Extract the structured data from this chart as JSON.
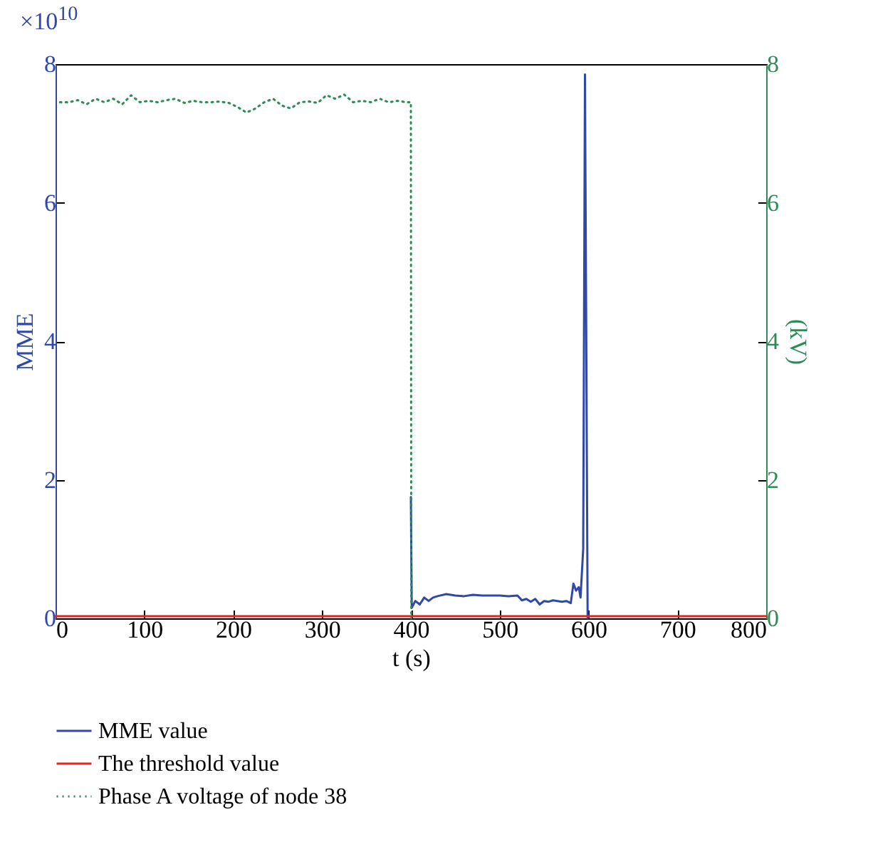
{
  "chart_data": {
    "type": "line",
    "xlabel": "t (s)",
    "ylabel": "MME",
    "y2label": "(kV)",
    "annotations": [
      "×10$^{10}$"
    ],
    "xlim": [
      0,
      800
    ],
    "xticks": [
      0,
      100,
      200,
      300,
      400,
      500,
      600,
      700,
      800
    ],
    "ylim": [
      0,
      8
    ],
    "yticks": [
      0,
      2,
      4,
      6,
      8
    ],
    "y2lim": [
      0,
      8
    ],
    "y2ticks": [
      0,
      2,
      4,
      6,
      8
    ],
    "legend": "bottom",
    "grid": false,
    "series": [
      {
        "name": "MME value",
        "color": "#3048a8",
        "line_style": "solid",
        "x": [
          400,
          401,
          405,
          410,
          415,
          420,
          425,
          430,
          440,
          450,
          460,
          470,
          480,
          490,
          500,
          510,
          520,
          525,
          530,
          535,
          540,
          545,
          550,
          555,
          560,
          570,
          575,
          580,
          583,
          586,
          589,
          591,
          594,
          596,
          599
        ],
        "values": [
          1.75,
          0.15,
          0.25,
          0.2,
          0.3,
          0.25,
          0.3,
          0.32,
          0.35,
          0.33,
          0.32,
          0.34,
          0.33,
          0.33,
          0.33,
          0.32,
          0.33,
          0.26,
          0.28,
          0.24,
          0.28,
          0.2,
          0.25,
          0.24,
          0.26,
          0.24,
          0.25,
          0.22,
          0.5,
          0.4,
          0.45,
          0.3,
          1.0,
          7.85,
          0.0
        ]
      },
      {
        "name": "The threshold value",
        "color": "#e8231c",
        "line_style": "solid",
        "x": [
          0,
          800
        ],
        "values": [
          0.03,
          0.03
        ]
      },
      {
        "name": "Phase A voltage of node 38",
        "color": "#2e8b57",
        "line_style": "dotted",
        "axis": "y2",
        "x": [
          5,
          15,
          25,
          35,
          45,
          55,
          65,
          75,
          85,
          95,
          105,
          115,
          125,
          135,
          145,
          155,
          165,
          175,
          185,
          195,
          205,
          215,
          225,
          235,
          245,
          255,
          265,
          275,
          285,
          295,
          305,
          315,
          325,
          335,
          345,
          355,
          365,
          375,
          385,
          395,
          400,
          400.5
        ],
        "values": [
          7.45,
          7.45,
          7.48,
          7.42,
          7.5,
          7.45,
          7.5,
          7.42,
          7.55,
          7.45,
          7.47,
          7.45,
          7.48,
          7.5,
          7.44,
          7.47,
          7.45,
          7.45,
          7.46,
          7.44,
          7.38,
          7.3,
          7.36,
          7.45,
          7.5,
          7.4,
          7.36,
          7.45,
          7.46,
          7.44,
          7.55,
          7.5,
          7.56,
          7.45,
          7.47,
          7.45,
          7.5,
          7.45,
          7.47,
          7.45,
          7.45,
          0
        ]
      }
    ]
  }
}
